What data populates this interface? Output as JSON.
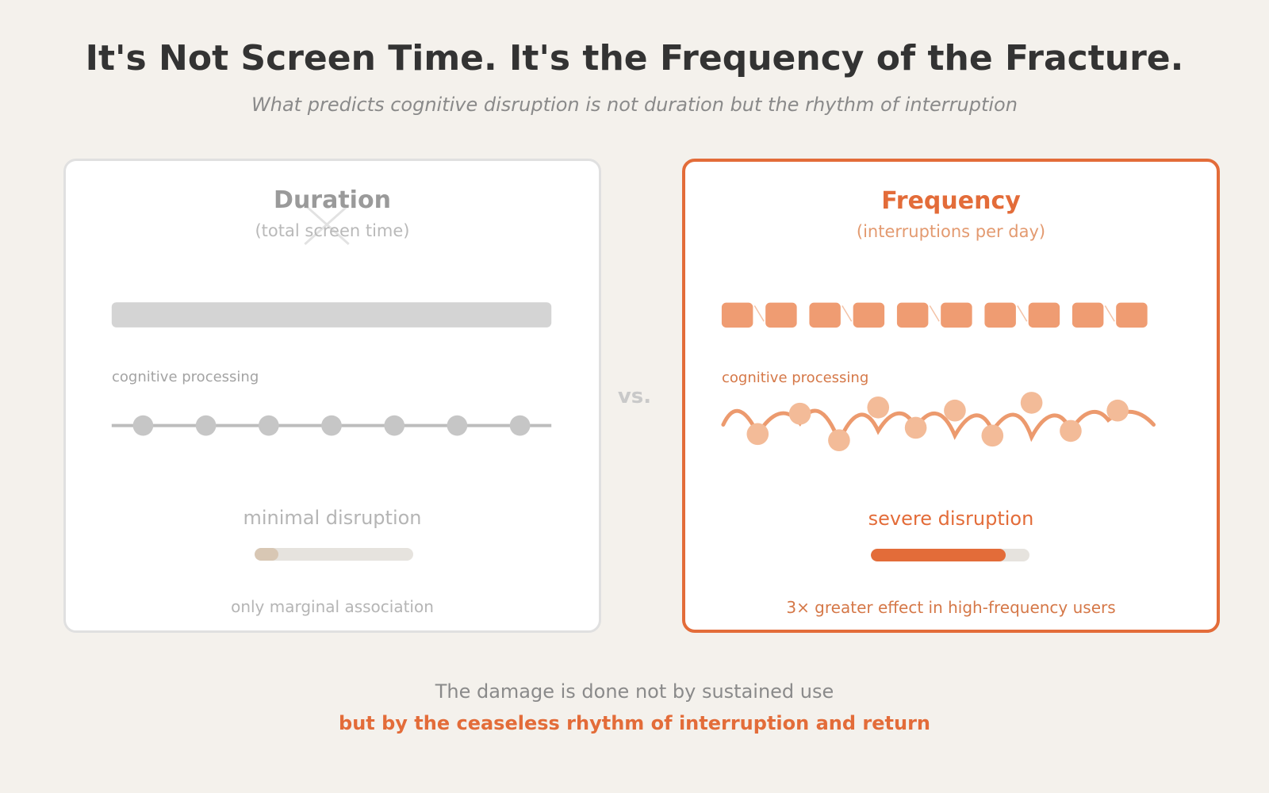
{
  "header": {
    "title": "It's Not Screen Time. It's the Frequency of the Fracture.",
    "subtitle": "What predicts cognitive disruption is not duration but the rhythm of interruption"
  },
  "left_card": {
    "heading": "Duration",
    "subheading": "(total screen time)",
    "process_label": "cognitive processing",
    "verdict": "minimal disruption",
    "disruption_level": 0.15,
    "note": "only marginal association",
    "icon": "cross-mark-icon",
    "colors": {
      "accent": "#d4d4d4",
      "meter": "#d8c7b4"
    }
  },
  "vs_label": "vs.",
  "right_card": {
    "heading": "Frequency",
    "subheading": "(interruptions per day)",
    "process_label": "cognitive processing",
    "verdict": "severe disruption",
    "disruption_level": 0.85,
    "note": "3× greater effect in high-frequency users",
    "colors": {
      "accent": "#e36c39",
      "segment": "#ef9c72",
      "dots": "#f3bb98"
    }
  },
  "footer": {
    "line1": "The damage is done not by sustained use",
    "line2": "but by the ceaseless rhythm of interruption and return"
  }
}
